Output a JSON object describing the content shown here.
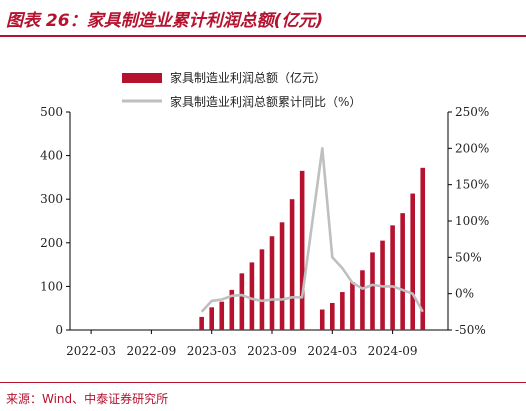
{
  "title": "图表 26：家具制造业累计利润总额(亿元)",
  "source": "来源：Wind、中泰证券研究所",
  "colors": {
    "bar": "#b4122f",
    "line": "#bfbfbf",
    "accent": "#b4122f"
  },
  "chart_data": {
    "type": "bar",
    "legend_position": "top",
    "grid": false,
    "x_ticks": [
      "2022-03",
      "2022-09",
      "2023-03",
      "2023-09",
      "2024-03",
      "2024-09"
    ],
    "left_axis": {
      "ylim": [
        0,
        500
      ],
      "ticks": [
        "0",
        "100",
        "200",
        "300",
        "400",
        "500"
      ]
    },
    "right_axis": {
      "ylim": [
        -50,
        250
      ],
      "ticks": [
        "-50%",
        "0%",
        "50%",
        "100%",
        "150%",
        "200%",
        "250%"
      ]
    },
    "categories": [
      "2023-02",
      "2023-03",
      "2023-04",
      "2023-05",
      "2023-06",
      "2023-07",
      "2023-08",
      "2023-09",
      "2023-10",
      "2023-11",
      "2023-12",
      "2024-02",
      "2024-03",
      "2024-04",
      "2024-05",
      "2024-06",
      "2024-07",
      "2024-08",
      "2024-09",
      "2024-10",
      "2024-11",
      "2024-12"
    ],
    "series": [
      {
        "name": "家具制造业利润总额（亿元）",
        "type": "bar",
        "axis": "left",
        "values": [
          30,
          52,
          65,
          92,
          130,
          155,
          185,
          215,
          247,
          300,
          365,
          47,
          62,
          87,
          110,
          137,
          178,
          205,
          240,
          268,
          313,
          372
        ]
      },
      {
        "name": "家具制造业利润总额累计同比（%）",
        "type": "line",
        "axis": "right",
        "values": [
          -25,
          -10,
          -8,
          -3,
          -2,
          -7,
          -10,
          -8,
          -8,
          -5,
          -5,
          200,
          50,
          35,
          15,
          7,
          12,
          10,
          10,
          5,
          0,
          -25
        ]
      }
    ]
  }
}
